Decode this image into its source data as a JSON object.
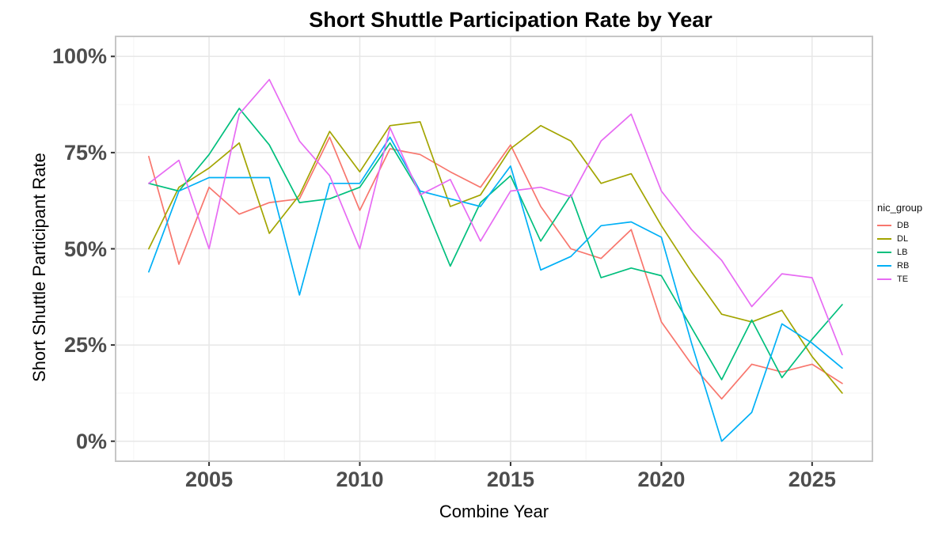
{
  "title": "Short Shuttle Participation Rate by Year",
  "legend": {
    "title": "nic_group"
  },
  "chart_data": {
    "type": "line",
    "title": "Short Shuttle Participation Rate by Year",
    "xlabel": "Combine Year",
    "ylabel": "Short Shuttle Participant Rate",
    "legend_title": "nic_group",
    "legend_position": "right",
    "grid": "on",
    "x": [
      2003,
      2004,
      2005,
      2006,
      2007,
      2008,
      2009,
      2010,
      2011,
      2012,
      2013,
      2014,
      2015,
      2016,
      2017,
      2018,
      2019,
      2020,
      2021,
      2022,
      2023,
      2024,
      2025,
      2026
    ],
    "series": [
      {
        "name": "DB",
        "color": "#F8766D",
        "values": [
          74,
          46,
          66,
          59,
          62,
          63,
          79,
          60,
          76,
          74.5,
          70,
          66,
          77,
          61,
          50,
          47.5,
          55,
          31,
          20,
          11,
          20,
          18,
          20,
          15
        ]
      },
      {
        "name": "DL",
        "color": "#A3A500",
        "values": [
          50,
          66,
          71,
          77.5,
          54,
          64,
          80.5,
          70,
          82,
          83,
          61,
          64,
          76,
          82,
          78,
          67,
          69.5,
          56,
          44,
          33,
          31,
          34,
          22,
          12.5
        ]
      },
      {
        "name": "LB",
        "color": "#00BF7D",
        "values": [
          67,
          65,
          74.5,
          86.5,
          77,
          62,
          63,
          66,
          77.5,
          64.5,
          45.5,
          62,
          69,
          52,
          64,
          42.5,
          45,
          43,
          29.5,
          16,
          31.5,
          16.5,
          26.5,
          35.5
        ]
      },
      {
        "name": "RB",
        "color": "#00B0F6",
        "values": [
          44,
          65,
          68.5,
          68.5,
          68.5,
          38,
          67,
          67,
          79,
          65,
          63,
          61,
          71.5,
          44.5,
          48,
          56,
          57,
          53,
          25.5,
          0,
          7.5,
          30.5,
          25.5,
          19
        ]
      },
      {
        "name": "TE",
        "color": "#E76BF3",
        "values": [
          67,
          73,
          50,
          85,
          94,
          78,
          69,
          50,
          81.5,
          64,
          68,
          52,
          65,
          66,
          63.5,
          78,
          85,
          65,
          55,
          47,
          35,
          43.5,
          42.5,
          22.5
        ]
      }
    ],
    "x_ticks": [
      {
        "value": 2005,
        "label": "2005"
      },
      {
        "value": 2010,
        "label": "2010"
      },
      {
        "value": 2015,
        "label": "2015"
      },
      {
        "value": 2020,
        "label": "2020"
      },
      {
        "value": 2025,
        "label": "2025"
      }
    ],
    "y_ticks": [
      {
        "value": 0,
        "label": "0%"
      },
      {
        "value": 25,
        "label": "25%"
      },
      {
        "value": 50,
        "label": "50%"
      },
      {
        "value": 75,
        "label": "75%"
      },
      {
        "value": 100,
        "label": "100%"
      }
    ],
    "x_minor": [
      2002.5,
      2007.5,
      2012.5,
      2017.5,
      2022.5
    ],
    "y_minor": [
      12.5,
      37.5,
      62.5,
      87.5
    ],
    "x_range": [
      2001.9,
      2027.0
    ],
    "y_range": [
      -5.2,
      105.2
    ],
    "colors": {
      "major_grid": "#e7e7e7",
      "minor_grid": "#f4f4f4",
      "panel_border": "#c6c6c6",
      "tick_mark": "#333333",
      "tick_text": "#4d4d4d"
    }
  }
}
